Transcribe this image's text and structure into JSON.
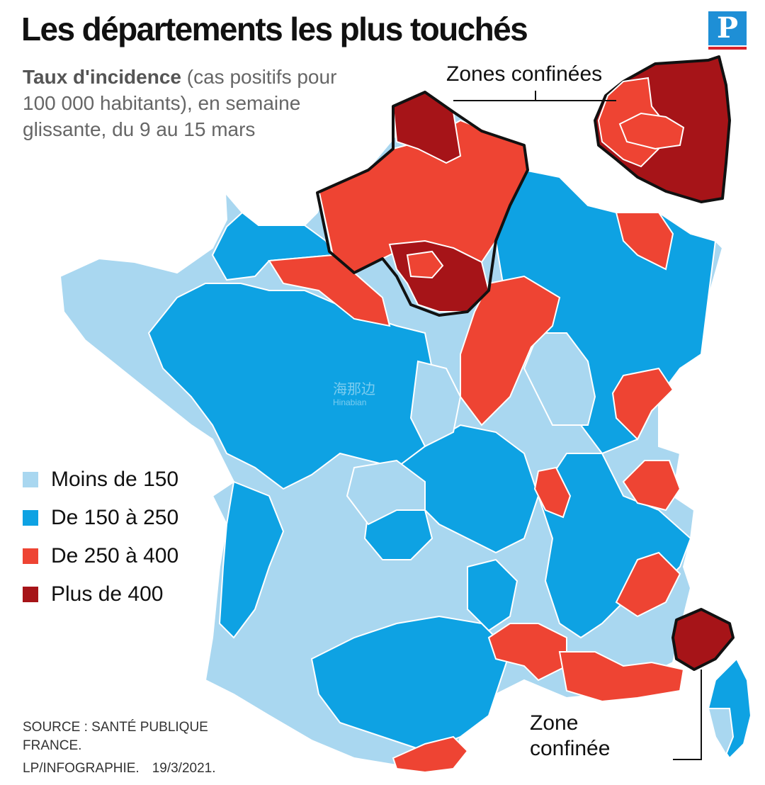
{
  "header": {
    "title": "Les départements les plus touchés",
    "subtitle_bold": "Taux d'incidence",
    "subtitle_rest": " (cas positifs pour 100 000 habitants), en semaine glissante, du 9 au 15 mars",
    "logo_letter": "P"
  },
  "legend": {
    "items": [
      {
        "label": "Moins de 150",
        "color": "#a9d7f0"
      },
      {
        "label": "De 150 à 250",
        "color": "#0ea2e3"
      },
      {
        "label": "De 250 à 400",
        "color": "#ee4433"
      },
      {
        "label": "Plus de 400",
        "color": "#a61418"
      }
    ]
  },
  "callouts": {
    "north": "Zones confinées",
    "south_line1": "Zone",
    "south_line2": "confinée"
  },
  "footer": {
    "source": "SOURCE : SANTÉ PUBLIQUE FRANCE.",
    "credit": "LP/INFOGRAPHIE.",
    "date": "19/3/2021."
  },
  "icons": [
    "le-parisien-logo"
  ]
}
